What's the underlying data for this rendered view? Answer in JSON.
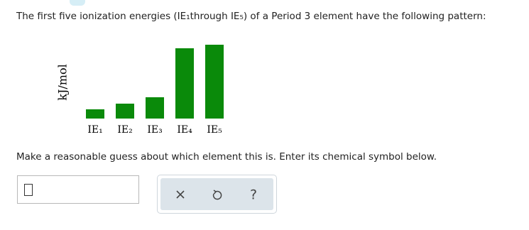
{
  "question": {
    "intro": "The first five ionization energies (IE₁through IE₅) of a Period 3 element have the following pattern:",
    "prompt": "Make a reasonable guess about which element this is. Enter its chemical symbol below."
  },
  "chart_data": {
    "type": "bar",
    "y_label": "kJ/mol",
    "categories": [
      "IE₁",
      "IE₂",
      "IE₃",
      "IE₄",
      "IE₅"
    ],
    "values": [
      13,
      21,
      30,
      99,
      104
    ],
    "color": "#0a8a0a"
  },
  "buttons": {
    "help": "?"
  }
}
